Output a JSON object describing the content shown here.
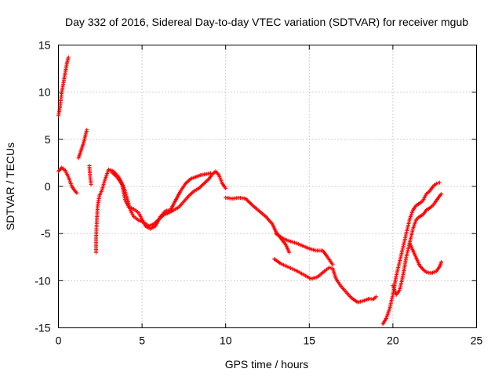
{
  "chart_data": {
    "type": "scatter",
    "title": "Day 332 of 2016, Sidereal Day-to-day VTEC variation (SDTVAR) for receiver mgub",
    "xlabel": "GPS time / hours",
    "ylabel": "SDTVAR / TECUs",
    "xlim": [
      0,
      25
    ],
    "ylim": [
      -15,
      15
    ],
    "xticks": [
      0,
      5,
      10,
      15,
      20,
      25
    ],
    "yticks": [
      -15,
      -10,
      -5,
      0,
      5,
      10,
      15
    ],
    "grid": true,
    "marker": "+",
    "color": "#ff0000",
    "series": [
      {
        "name": "s1",
        "points": [
          [
            0.0,
            7.5
          ],
          [
            0.1,
            8.5
          ],
          [
            0.2,
            10.0
          ],
          [
            0.3,
            11.0
          ],
          [
            0.4,
            12.0
          ],
          [
            0.5,
            13.0
          ],
          [
            0.6,
            13.7
          ]
        ]
      },
      {
        "name": "s2",
        "points": [
          [
            1.2,
            3.0
          ],
          [
            1.35,
            3.8
          ],
          [
            1.5,
            4.6
          ],
          [
            1.6,
            5.3
          ],
          [
            1.7,
            6.0
          ]
        ]
      },
      {
        "name": "s3",
        "points": [
          [
            1.85,
            2.2
          ],
          [
            1.9,
            1.0
          ],
          [
            1.95,
            0.2
          ]
        ]
      },
      {
        "name": "s4",
        "points": [
          [
            0.0,
            1.6
          ],
          [
            0.2,
            2.0
          ],
          [
            0.4,
            1.7
          ],
          [
            0.6,
            1.0
          ],
          [
            0.8,
            0.0
          ],
          [
            1.0,
            -0.5
          ],
          [
            1.1,
            -0.7
          ]
        ]
      },
      {
        "name": "s5",
        "points": [
          [
            2.25,
            -7.0
          ],
          [
            2.25,
            -5.5
          ],
          [
            2.3,
            -3.5
          ],
          [
            2.35,
            -2.0
          ],
          [
            2.45,
            -1.0
          ],
          [
            2.6,
            -0.4
          ],
          [
            2.8,
            0.8
          ],
          [
            3.0,
            1.8
          ],
          [
            3.3,
            1.6
          ],
          [
            3.6,
            1.0
          ],
          [
            3.9,
            0.0
          ],
          [
            4.1,
            -1.2
          ],
          [
            4.3,
            -2.5
          ],
          [
            4.5,
            -3.2
          ],
          [
            4.8,
            -3.6
          ],
          [
            5.1,
            -3.8
          ],
          [
            5.4,
            -4.2
          ],
          [
            5.7,
            -4.0
          ],
          [
            6.0,
            -3.5
          ],
          [
            6.3,
            -3.0
          ],
          [
            6.6,
            -2.8
          ],
          [
            6.9,
            -2.5
          ],
          [
            7.2,
            -2.2
          ],
          [
            7.5,
            -1.6
          ],
          [
            7.8,
            -1.0
          ],
          [
            8.1,
            -0.5
          ],
          [
            8.4,
            -0.2
          ],
          [
            8.7,
            0.3
          ],
          [
            9.0,
            0.8
          ],
          [
            9.2,
            1.3
          ],
          [
            9.4,
            1.6
          ],
          [
            9.6,
            1.2
          ],
          [
            9.8,
            0.3
          ],
          [
            10.0,
            -0.2
          ]
        ]
      },
      {
        "name": "s6",
        "points": [
          [
            3.2,
            1.5
          ],
          [
            3.5,
            1.0
          ],
          [
            3.8,
            0.2
          ],
          [
            4.0,
            -1.5
          ],
          [
            4.2,
            -2.2
          ],
          [
            4.5,
            -2.4
          ],
          [
            4.8,
            -2.8
          ],
          [
            5.0,
            -3.5
          ],
          [
            5.2,
            -4.2
          ],
          [
            5.5,
            -4.5
          ],
          [
            5.8,
            -4.2
          ],
          [
            6.1,
            -3.2
          ],
          [
            6.4,
            -2.6
          ],
          [
            6.7,
            -2.5
          ],
          [
            7.0,
            -1.5
          ],
          [
            7.3,
            -0.5
          ],
          [
            7.6,
            0.3
          ],
          [
            7.9,
            0.8
          ],
          [
            8.2,
            1.0
          ],
          [
            8.5,
            1.2
          ],
          [
            8.8,
            1.3
          ],
          [
            9.1,
            1.4
          ]
        ]
      },
      {
        "name": "s7",
        "points": [
          [
            10.0,
            -1.2
          ],
          [
            10.4,
            -1.3
          ],
          [
            10.8,
            -1.2
          ],
          [
            11.2,
            -1.3
          ],
          [
            11.6,
            -2.0
          ],
          [
            12.0,
            -2.6
          ],
          [
            12.4,
            -3.2
          ],
          [
            12.8,
            -4.0
          ],
          [
            13.0,
            -4.8
          ],
          [
            13.3,
            -5.5
          ],
          [
            13.6,
            -6.2
          ],
          [
            13.8,
            -7.0
          ]
        ]
      },
      {
        "name": "s8",
        "points": [
          [
            13.0,
            -5.0
          ],
          [
            13.4,
            -5.5
          ],
          [
            13.8,
            -5.8
          ],
          [
            14.2,
            -6.0
          ],
          [
            14.6,
            -6.3
          ],
          [
            15.0,
            -6.6
          ],
          [
            15.4,
            -6.8
          ],
          [
            15.8,
            -6.8
          ],
          [
            16.1,
            -7.5
          ],
          [
            16.4,
            -8.3
          ]
        ]
      },
      {
        "name": "s9",
        "points": [
          [
            12.9,
            -7.7
          ],
          [
            13.3,
            -8.2
          ],
          [
            13.8,
            -8.6
          ],
          [
            14.3,
            -9.0
          ],
          [
            14.7,
            -9.4
          ],
          [
            15.1,
            -9.8
          ],
          [
            15.5,
            -9.6
          ],
          [
            15.9,
            -9.0
          ],
          [
            16.2,
            -8.6
          ],
          [
            16.4,
            -8.7
          ],
          [
            16.6,
            -9.8
          ],
          [
            16.9,
            -10.6
          ],
          [
            17.2,
            -11.2
          ],
          [
            17.5,
            -11.8
          ],
          [
            17.9,
            -12.3
          ],
          [
            18.3,
            -12.1
          ],
          [
            18.6,
            -11.9
          ],
          [
            18.8,
            -12.0
          ],
          [
            19.0,
            -11.7
          ]
        ]
      },
      {
        "name": "s10",
        "points": [
          [
            19.4,
            -14.6
          ],
          [
            19.6,
            -14.0
          ],
          [
            19.8,
            -13.0
          ],
          [
            20.0,
            -11.5
          ],
          [
            20.2,
            -9.5
          ],
          [
            20.4,
            -8.0
          ],
          [
            20.6,
            -6.5
          ],
          [
            20.8,
            -5.0
          ],
          [
            21.0,
            -3.5
          ],
          [
            21.2,
            -2.5
          ],
          [
            21.4,
            -2.0
          ],
          [
            21.6,
            -1.8
          ],
          [
            21.8,
            -1.5
          ],
          [
            22.0,
            -0.8
          ],
          [
            22.2,
            -0.5
          ],
          [
            22.4,
            0.0
          ],
          [
            22.6,
            0.3
          ],
          [
            22.8,
            0.4
          ]
        ]
      },
      {
        "name": "s11",
        "points": [
          [
            20.0,
            -10.5
          ],
          [
            20.2,
            -11.5
          ],
          [
            20.4,
            -11.0
          ],
          [
            20.6,
            -9.5
          ],
          [
            20.8,
            -7.5
          ],
          [
            21.0,
            -6.0
          ],
          [
            21.2,
            -4.5
          ],
          [
            21.4,
            -3.5
          ],
          [
            21.6,
            -3.2
          ],
          [
            21.8,
            -3.0
          ],
          [
            22.0,
            -2.5
          ],
          [
            22.2,
            -2.3
          ],
          [
            22.4,
            -2.0
          ],
          [
            22.6,
            -1.5
          ],
          [
            22.8,
            -1.0
          ],
          [
            22.9,
            -0.8
          ]
        ]
      },
      {
        "name": "s12",
        "points": [
          [
            21.0,
            -6.0
          ],
          [
            21.2,
            -6.8
          ],
          [
            21.4,
            -7.6
          ],
          [
            21.6,
            -8.4
          ],
          [
            21.8,
            -8.8
          ],
          [
            22.0,
            -9.1
          ],
          [
            22.3,
            -9.2
          ],
          [
            22.6,
            -9.0
          ],
          [
            22.8,
            -8.5
          ],
          [
            22.9,
            -8.0
          ]
        ]
      }
    ]
  }
}
